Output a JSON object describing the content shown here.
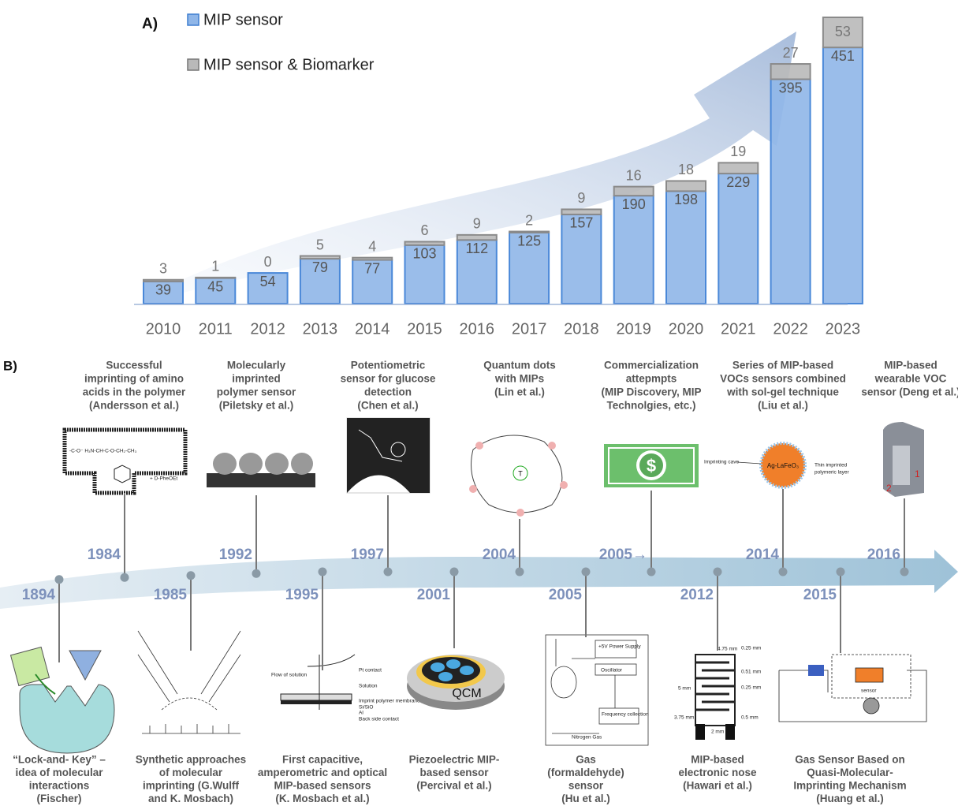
{
  "chart_data": {
    "type": "stacked_bar",
    "panel_label": "A)",
    "categories": [
      "2010",
      "2011",
      "2012",
      "2013",
      "2014",
      "2015",
      "2016",
      "2017",
      "2018",
      "2019",
      "2020",
      "2021",
      "2022",
      "2023"
    ],
    "series": [
      {
        "name": "MIP sensor",
        "color": "#8fb6e8",
        "values": [
          39,
          45,
          54,
          79,
          77,
          103,
          112,
          125,
          157,
          190,
          198,
          229,
          395,
          451
        ]
      },
      {
        "name": "MIP sensor & Biomarker",
        "color": "#b9b9b9",
        "values": [
          3,
          1,
          0,
          5,
          4,
          6,
          9,
          2,
          9,
          16,
          18,
          19,
          27,
          53
        ]
      }
    ]
  },
  "panel_b": {
    "label": "B)",
    "top": [
      {
        "year": "1984",
        "caption": [
          "Successful",
          "imprinting of amino",
          "acids in the polymer",
          "(Andersson et al.)"
        ],
        "image_labels": [
          "+ D-PheOEt"
        ]
      },
      {
        "year": "1992",
        "caption": [
          "Molecularly",
          "imprinted",
          "polymer sensor",
          "(Piletsky et al.)"
        ]
      },
      {
        "year": "1997",
        "caption": [
          "Potentiometric",
          "sensor for glucose",
          "detection",
          "(Chen et al.)"
        ]
      },
      {
        "year": "2004",
        "caption": [
          "Quantum dots",
          "with MIPs",
          "(Lin et al.)"
        ]
      },
      {
        "year": "2005→",
        "caption": [
          "Commercialization",
          "attepmpts",
          "(MIP Discovery, MIP",
          "Technolgies, etc.)"
        ]
      },
      {
        "year": "2014",
        "caption": [
          "Series of MIP-based",
          "VOCs sensors combined",
          "with sol-gel technique",
          "(Liu et al.)"
        ],
        "image_labels": [
          "Imprinting cave",
          "Ag-LaFeO₃",
          "Thin imprinted",
          "polymeric layer"
        ]
      },
      {
        "year": "2016",
        "caption": [
          "MIP-based",
          "wearable VOC",
          "sensor (Deng et al.)"
        ],
        "image_labels": [
          "1",
          "2"
        ]
      }
    ],
    "bottom": [
      {
        "year": "1894",
        "caption": [
          "“Lock-and- Key” –",
          "idea of molecular",
          "interactions",
          "(Fischer)"
        ]
      },
      {
        "year": "1985",
        "caption": [
          "Synthetic approaches",
          "of molecular",
          "imprinting  (G.Wulff",
          "and K. Mosbach)"
        ]
      },
      {
        "year": "1995",
        "caption": [
          "First capacitive,",
          "amperometric and optical",
          "MIP-based sensors",
          "(K. Mosbach et al.)"
        ],
        "image_labels": [
          "Flow of solution",
          "Pt contact",
          "Solution",
          "Imprint polymer membrane",
          "Si/SiO",
          "Al",
          "Back side contact"
        ]
      },
      {
        "year": "2001",
        "caption": [
          "Piezoelectric MIP-",
          "based sensor",
          "(Percival et al.)"
        ],
        "image_labels": [
          "QCM"
        ]
      },
      {
        "year": "2005",
        "caption": [
          "Gas",
          "(formaldehyde)",
          "sensor",
          "(Hu et al.)"
        ],
        "image_labels": [
          "+5V Power Supply",
          "Oscillator",
          "Frequency collection",
          "Nitrogen Gas"
        ]
      },
      {
        "year": "2012",
        "caption": [
          "MIP-based",
          "electronic nose",
          "(Hawari et al.)"
        ],
        "image_labels": [
          "0.25 mm",
          "4.75 mm",
          "0.51 mm",
          "0.25 mm",
          "5 mm",
          "3.75 mm",
          "0.5 mm",
          "2 mm"
        ]
      },
      {
        "year": "2015",
        "caption": [
          "Gas Sensor Based on",
          "Quasi-Molecular-",
          "Imprinting Mechanism",
          "(Huang et al.)"
        ],
        "image_labels": [
          "sensor"
        ]
      }
    ]
  }
}
